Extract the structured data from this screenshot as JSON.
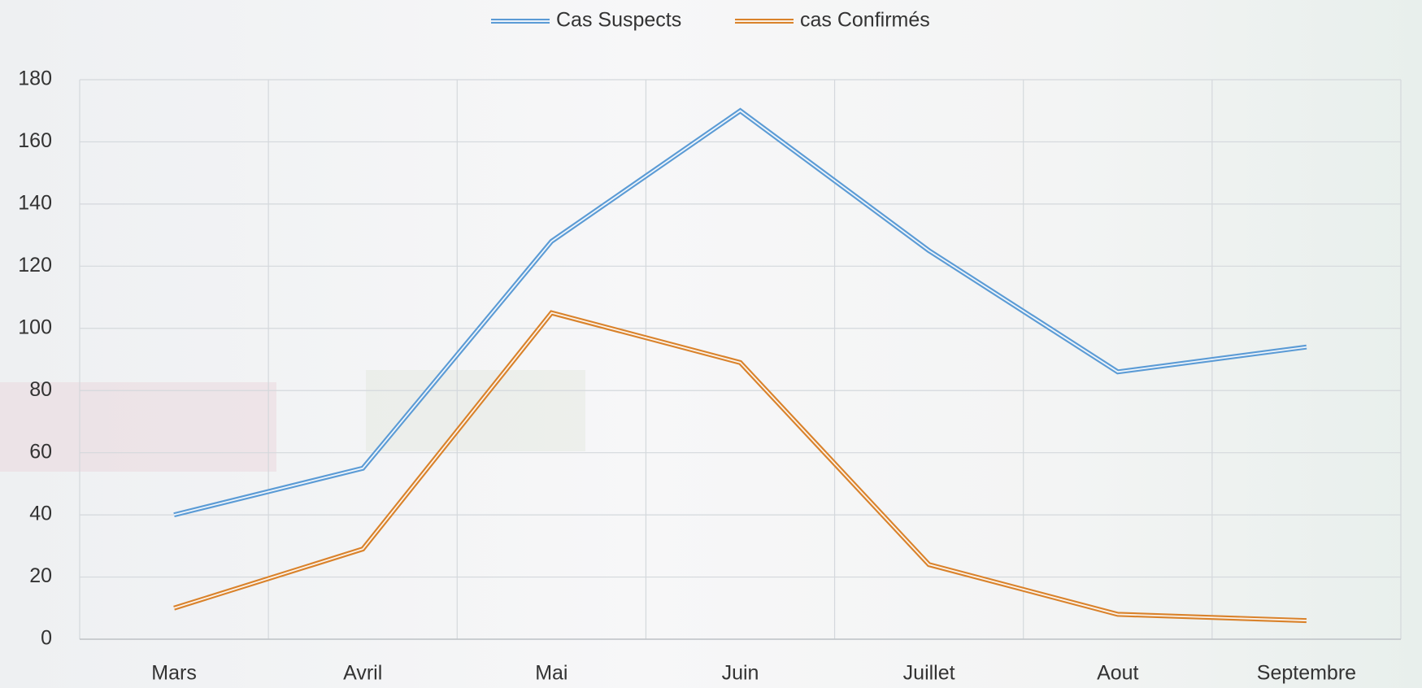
{
  "chart_data": {
    "type": "line",
    "categories": [
      "Mars",
      "Avril",
      "Mai",
      "Juin",
      "Juillet",
      "Aout",
      "Septembre"
    ],
    "series": [
      {
        "name": "Cas Suspects",
        "color": "#5b9bd5",
        "values": [
          40,
          55,
          128,
          170,
          125,
          86,
          94
        ]
      },
      {
        "name": "cas Confirmés",
        "color": "#d9822b",
        "values": [
          10,
          29,
          105,
          89,
          24,
          8,
          6
        ]
      }
    ],
    "ylim": [
      0,
      180
    ],
    "yticks": [
      0,
      20,
      40,
      60,
      80,
      100,
      120,
      140,
      160,
      180
    ],
    "grid": true,
    "legend": "top"
  }
}
